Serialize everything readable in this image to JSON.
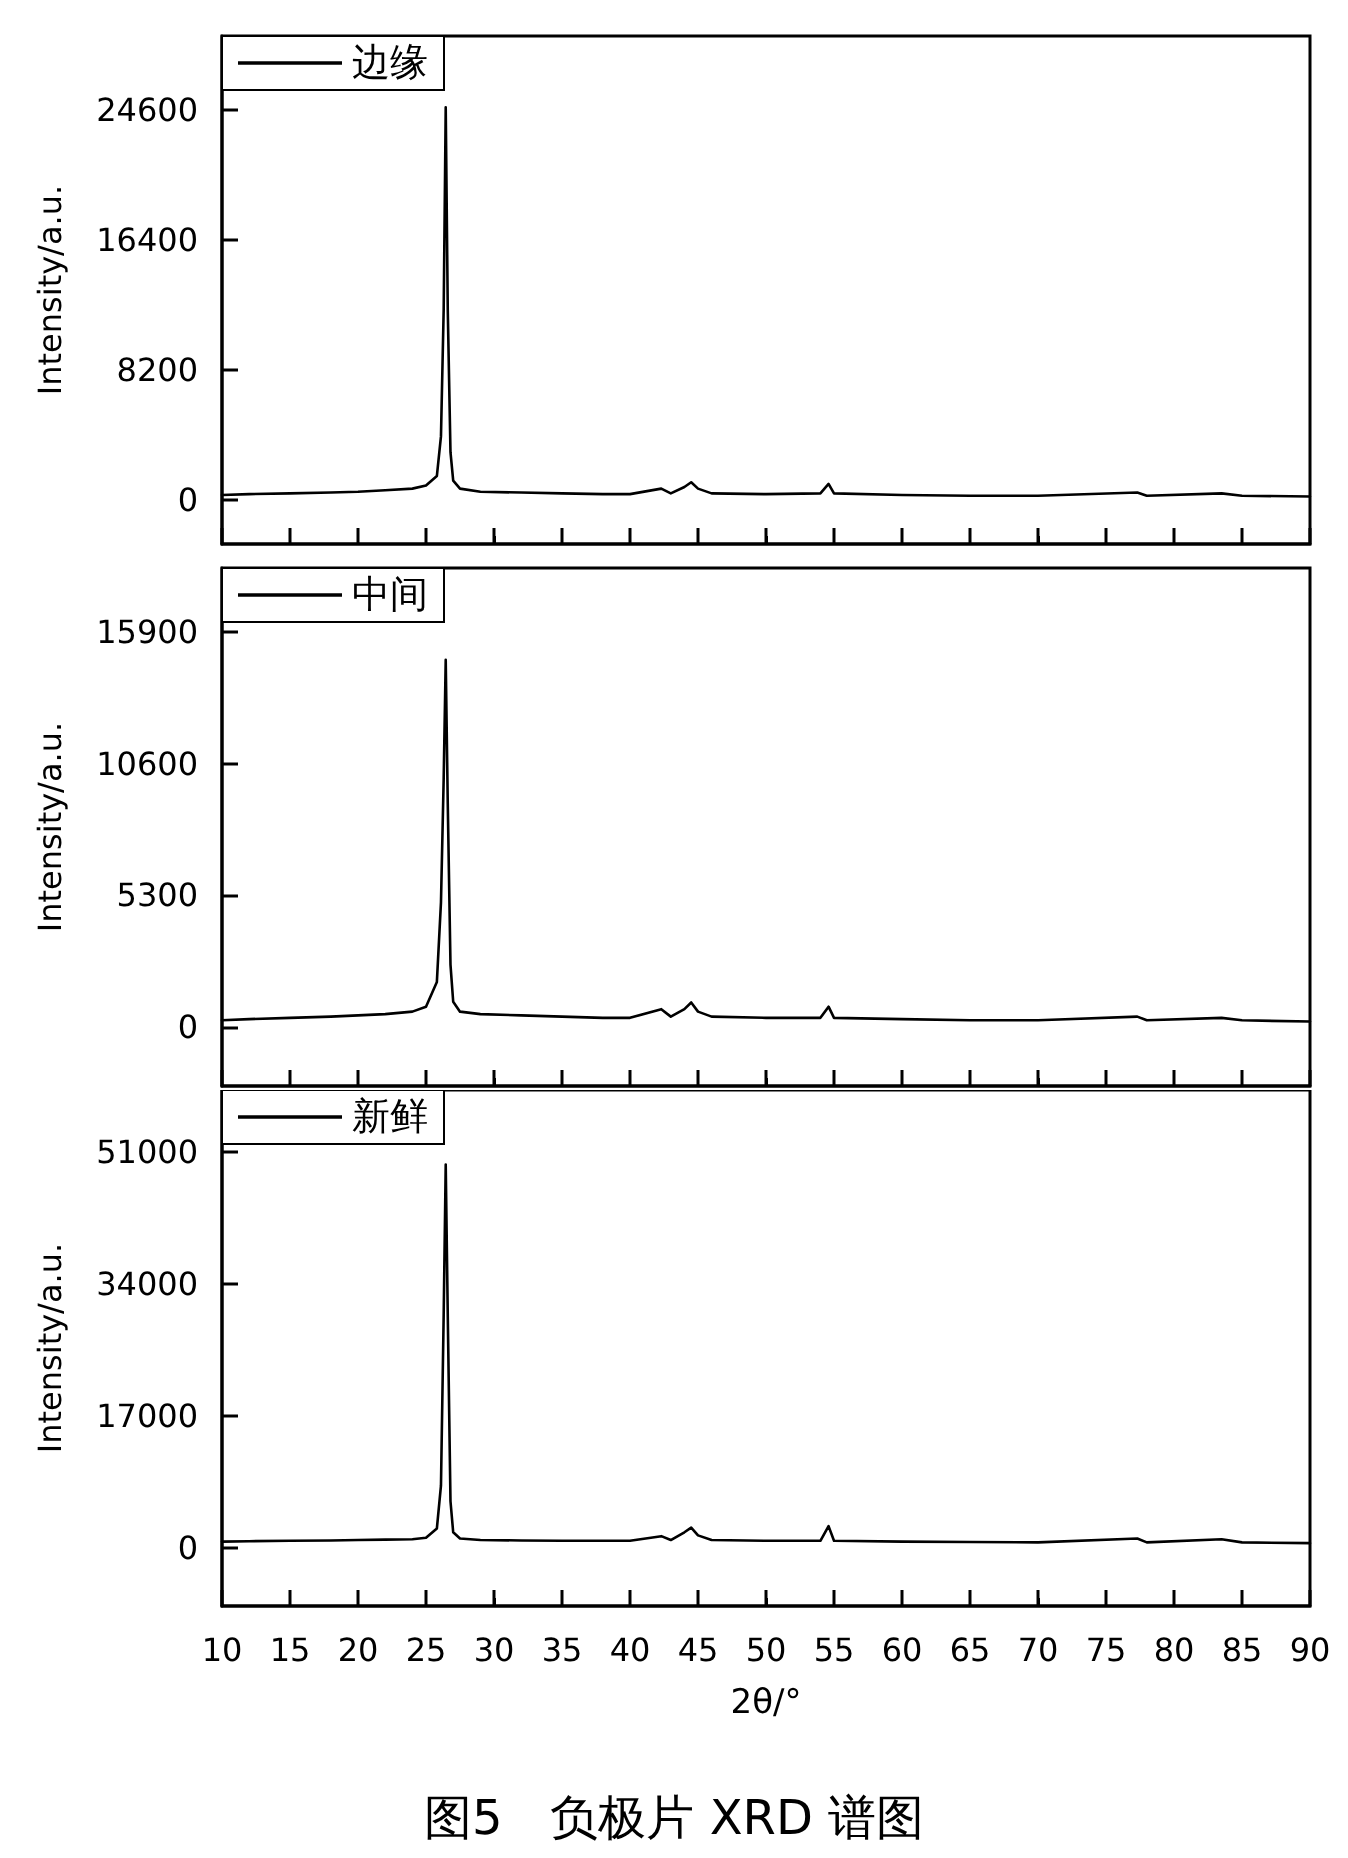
{
  "chart_data": [
    {
      "type": "line",
      "ylabel": "Intensity/a.u.",
      "xlim": [
        10,
        90
      ],
      "xticks": [
        10,
        15,
        20,
        25,
        30,
        35,
        40,
        45,
        50,
        55,
        60,
        65,
        70,
        75,
        80,
        85,
        90
      ],
      "ylim": [
        -2800,
        29300
      ],
      "yticks": [
        0,
        8200,
        16400,
        24600
      ],
      "tick_labels": "y",
      "legend": "top left",
      "marker": "none",
      "line_style": "solid",
      "grid": false,
      "series": [
        {
          "name": "边缘",
          "color": "#000000",
          "x": [
            10,
            12,
            15,
            18,
            20,
            22,
            24,
            25,
            25.8,
            26.1,
            26.3,
            26.45,
            26.6,
            26.8,
            27,
            27.5,
            29,
            32,
            35,
            38,
            40,
            42.3,
            43,
            44,
            44.5,
            45,
            46,
            50,
            54,
            54.6,
            55,
            60,
            65,
            70,
            77.3,
            78,
            83.5,
            85,
            90
          ],
          "values": [
            300,
            350,
            400,
            450,
            500,
            600,
            700,
            900,
            1500,
            4000,
            12000,
            24800,
            12000,
            3000,
            1200,
            700,
            500,
            450,
            400,
            350,
            350,
            700,
            400,
            800,
            1100,
            700,
            400,
            350,
            400,
            1000,
            400,
            300,
            250,
            250,
            450,
            250,
            400,
            250,
            200
          ]
        }
      ]
    },
    {
      "type": "line",
      "ylabel": "Intensity/a.u.",
      "xlim": [
        10,
        90
      ],
      "xticks": [
        10,
        15,
        20,
        25,
        30,
        35,
        40,
        45,
        50,
        55,
        60,
        65,
        70,
        75,
        80,
        85,
        90
      ],
      "ylim": [
        -2400,
        18500
      ],
      "yticks": [
        0,
        5300,
        10600,
        15900
      ],
      "tick_labels": "y",
      "legend": "top left",
      "marker": "none",
      "line_style": "solid",
      "grid": false,
      "series": [
        {
          "name": "中间",
          "color": "#000000",
          "x": [
            10,
            12,
            15,
            18,
            20,
            22,
            24,
            25,
            25.8,
            26.1,
            26.3,
            26.45,
            26.6,
            26.8,
            27,
            27.5,
            29,
            32,
            35,
            38,
            40,
            42.3,
            43,
            44,
            44.5,
            45,
            46,
            50,
            54,
            54.6,
            55,
            60,
            65,
            70,
            77.3,
            78,
            83.5,
            85,
            90
          ],
          "values": [
            250,
            300,
            350,
            400,
            450,
            500,
            600,
            800,
            1800,
            5000,
            10000,
            14800,
            9000,
            2500,
            1000,
            600,
            500,
            450,
            400,
            350,
            350,
            700,
            400,
            700,
            970,
            600,
            400,
            350,
            350,
            800,
            350,
            300,
            250,
            250,
            400,
            250,
            350,
            250,
            200
          ]
        }
      ]
    },
    {
      "type": "line",
      "ylabel": "Intensity/a.u.",
      "xlabel": "2θ/°",
      "annotations": [
        "图5　负极片 XRD 谱图"
      ],
      "xlim": [
        10,
        90
      ],
      "xticks": [
        10,
        15,
        20,
        25,
        30,
        35,
        40,
        45,
        50,
        55,
        60,
        65,
        70,
        75,
        80,
        85,
        90
      ],
      "ylim": [
        -7500,
        59000
      ],
      "yticks": [
        0,
        17000,
        34000,
        51000
      ],
      "legend": "top left",
      "marker": "none",
      "line_style": "solid",
      "grid": false,
      "series": [
        {
          "name": "新鲜",
          "color": "#000000",
          "x": [
            10,
            12,
            15,
            18,
            20,
            22,
            24,
            25,
            25.8,
            26.1,
            26.3,
            26.45,
            26.6,
            26.8,
            27,
            27.5,
            29,
            32,
            35,
            38,
            40,
            42.3,
            43,
            44,
            44.5,
            45,
            46,
            50,
            54,
            54.6,
            55,
            60,
            65,
            70,
            77.3,
            78,
            83.5,
            85,
            90
          ],
          "values": [
            800,
            850,
            900,
            950,
            1000,
            1050,
            1100,
            1300,
            2500,
            8000,
            30000,
            49400,
            30000,
            6000,
            2000,
            1200,
            1000,
            950,
            900,
            900,
            900,
            1500,
            1000,
            2000,
            2600,
            1600,
            1000,
            900,
            900,
            2800,
            900,
            800,
            750,
            700,
            1200,
            700,
            1100,
            700,
            600
          ]
        }
      ]
    }
  ]
}
